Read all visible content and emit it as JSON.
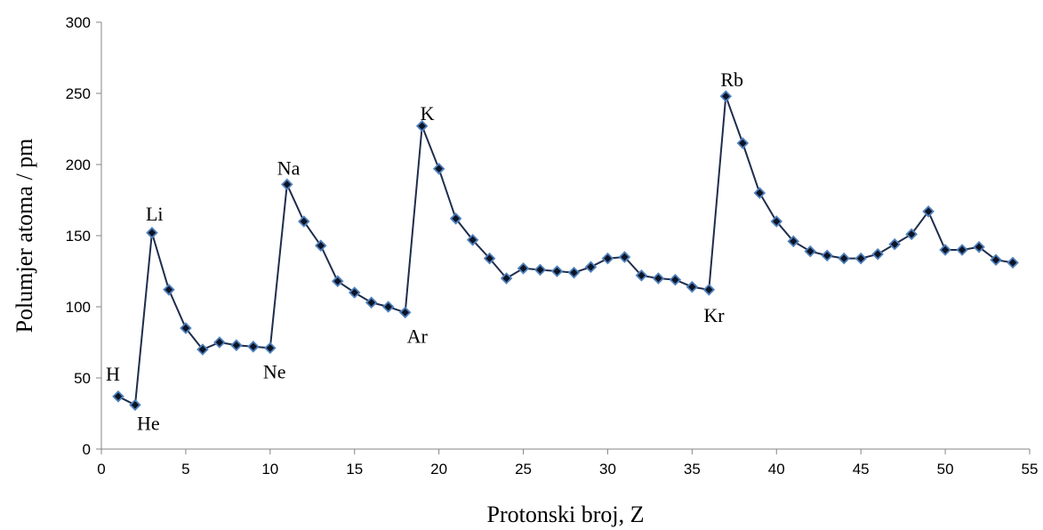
{
  "chart_data": {
    "type": "scatter",
    "xlabel": "Protonski broj, Z",
    "ylabel": "Polumjer atoma / pm",
    "xlim": [
      0,
      55
    ],
    "ylim": [
      0,
      300
    ],
    "x_ticks": [
      0,
      5,
      10,
      15,
      20,
      25,
      30,
      35,
      40,
      45,
      50,
      55
    ],
    "y_ticks": [
      0,
      50,
      100,
      150,
      200,
      250,
      300
    ],
    "grid": false,
    "colors": {
      "line": "#1f2d4d",
      "marker_fill": "#0d1426",
      "marker_edge": "#4f81bd"
    },
    "series": [
      {
        "x": [
          1,
          2,
          3,
          4,
          5,
          6,
          7,
          8,
          9,
          10,
          11,
          12,
          13,
          14,
          15,
          16,
          17,
          18,
          19,
          20,
          21,
          22,
          23,
          24,
          25,
          26,
          27,
          28,
          29,
          30,
          31,
          32,
          33,
          34,
          35,
          36,
          37,
          38,
          39,
          40,
          41,
          42,
          43,
          44,
          45,
          46,
          47,
          48,
          49,
          50,
          51,
          52,
          53,
          54
        ],
        "y": [
          37,
          31,
          152,
          112,
          85,
          70,
          75,
          73,
          72,
          71,
          186,
          160,
          143,
          118,
          110,
          103,
          100,
          96,
          227,
          197,
          162,
          147,
          134,
          120,
          127,
          126,
          125,
          124,
          128,
          134,
          135,
          122,
          120,
          119,
          114,
          112,
          248,
          215,
          180,
          160,
          146,
          139,
          136,
          134,
          134,
          137,
          144,
          151,
          167,
          140,
          140,
          142,
          133,
          131
        ]
      }
    ],
    "annotations": [
      {
        "text": "H",
        "x": 1,
        "y": 37
      },
      {
        "text": "He",
        "x": 2,
        "y": 31
      },
      {
        "text": "Li",
        "x": 3,
        "y": 152
      },
      {
        "text": "Ne",
        "x": 10,
        "y": 71
      },
      {
        "text": "Na",
        "x": 11,
        "y": 186
      },
      {
        "text": "Ar",
        "x": 18,
        "y": 96
      },
      {
        "text": "K",
        "x": 19,
        "y": 227
      },
      {
        "text": "Kr",
        "x": 36,
        "y": 112
      },
      {
        "text": "Rb",
        "x": 37,
        "y": 248
      }
    ]
  }
}
